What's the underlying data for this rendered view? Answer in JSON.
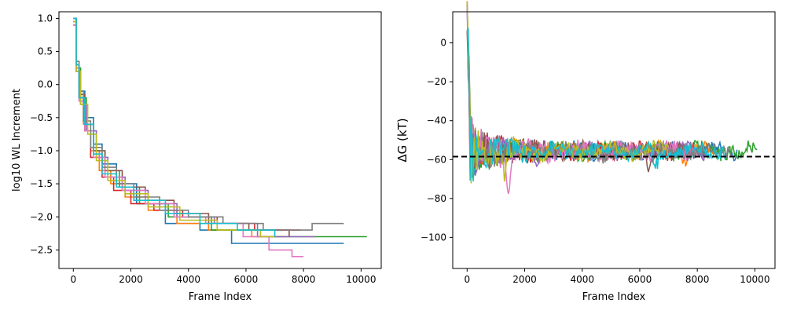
{
  "chart_data": [
    {
      "type": "line",
      "xlabel": "Frame Index",
      "ylabel": "log10 WL Increment",
      "xlim": [
        -500,
        10700
      ],
      "ylim": [
        -2.78,
        1.1
      ],
      "xticks": [
        0,
        2000,
        4000,
        6000,
        8000,
        10000
      ],
      "yticks": [
        1.0,
        0.5,
        0.0,
        -0.5,
        -1.0,
        -1.5,
        -2.0,
        -2.5
      ],
      "xtick_labels": [
        "0",
        "2000",
        "4000",
        "6000",
        "8000",
        "10000"
      ],
      "ytick_labels": [
        "1.0",
        "0.5",
        "0.0",
        "−0.5",
        "−1.0",
        "−1.5",
        "−2.0",
        "−2.5"
      ],
      "grid": false,
      "series": [
        {
          "color": "#1f77b4",
          "x": [
            0,
            100,
            200,
            400,
            700,
            1000,
            1500,
            2200,
            3200,
            4400,
            5500,
            9400
          ],
          "y": [
            1.0,
            0.3,
            -0.1,
            -0.5,
            -0.9,
            -1.2,
            -1.5,
            -1.8,
            -2.1,
            -2.2,
            -2.4,
            -2.4
          ]
        },
        {
          "color": "#ff7f0e",
          "x": [
            0,
            100,
            200,
            350,
            600,
            900,
            1300,
            1800,
            2600,
            3600,
            4700,
            6200,
            7300
          ],
          "y": [
            0.9,
            0.2,
            -0.2,
            -0.6,
            -1.0,
            -1.3,
            -1.5,
            -1.7,
            -1.9,
            -2.1,
            -2.2,
            -2.3,
            -2.3
          ]
        },
        {
          "color": "#2ca02c",
          "x": [
            0,
            100,
            250,
            450,
            700,
            1100,
            1600,
            2300,
            3300,
            4800,
            6500,
            8800,
            10200
          ],
          "y": [
            0.95,
            0.25,
            -0.2,
            -0.6,
            -1.0,
            -1.3,
            -1.55,
            -1.8,
            -2.0,
            -2.2,
            -2.3,
            -2.3,
            -2.3
          ]
        },
        {
          "color": "#d62728",
          "x": [
            0,
            100,
            200,
            400,
            600,
            1000,
            1400,
            2000,
            2800,
            3800,
            5000,
            6300,
            7900
          ],
          "y": [
            1.0,
            0.3,
            -0.2,
            -0.7,
            -1.1,
            -1.4,
            -1.6,
            -1.8,
            -1.9,
            -2.0,
            -2.1,
            -2.2,
            -2.2
          ]
        },
        {
          "color": "#9467bd",
          "x": [
            0,
            100,
            250,
            450,
            800,
            1200,
            1800,
            2600,
            3600,
            4900,
            6400,
            8400
          ],
          "y": [
            0.9,
            0.2,
            -0.3,
            -0.7,
            -1.1,
            -1.4,
            -1.6,
            -1.8,
            -2.0,
            -2.1,
            -2.3,
            -2.3
          ]
        },
        {
          "color": "#8c564b",
          "x": [
            0,
            100,
            200,
            400,
            700,
            1100,
            1700,
            2500,
            3500,
            4700,
            6100,
            7500
          ],
          "y": [
            0.95,
            0.3,
            -0.15,
            -0.6,
            -1.0,
            -1.3,
            -1.55,
            -1.75,
            -1.95,
            -2.1,
            -2.2,
            -2.3
          ]
        },
        {
          "color": "#e377c2",
          "x": [
            0,
            100,
            200,
            400,
            700,
            1100,
            1700,
            2500,
            3500,
            4600,
            5900,
            6800,
            7600,
            8000
          ],
          "y": [
            0.9,
            0.25,
            -0.25,
            -0.7,
            -1.1,
            -1.4,
            -1.6,
            -1.8,
            -2.0,
            -2.1,
            -2.3,
            -2.5,
            -2.6,
            -2.6
          ]
        },
        {
          "color": "#7f7f7f",
          "x": [
            0,
            100,
            200,
            350,
            600,
            1000,
            1500,
            2100,
            3000,
            4000,
            5200,
            6600,
            8300,
            9400
          ],
          "y": [
            1.0,
            0.35,
            -0.1,
            -0.55,
            -0.95,
            -1.25,
            -1.5,
            -1.7,
            -1.9,
            -2.0,
            -2.1,
            -2.2,
            -2.1,
            -2.1
          ]
        },
        {
          "color": "#bcbd22",
          "x": [
            0,
            100,
            250,
            500,
            800,
            1200,
            1800,
            2600,
            3700,
            5000,
            6500,
            7000
          ],
          "y": [
            0.95,
            0.2,
            -0.3,
            -0.75,
            -1.15,
            -1.45,
            -1.65,
            -1.85,
            -2.05,
            -2.2,
            -2.3,
            -2.3
          ]
        },
        {
          "color": "#17becf",
          "x": [
            0,
            100,
            200,
            400,
            700,
            1000,
            1500,
            2100,
            3200,
            4400,
            5700,
            7000
          ],
          "y": [
            1.0,
            0.3,
            -0.2,
            -0.6,
            -1.05,
            -1.35,
            -1.55,
            -1.75,
            -1.95,
            -2.1,
            -2.2,
            -2.3
          ]
        }
      ]
    },
    {
      "type": "line",
      "xlabel": "Frame Index",
      "ylabel": "ΔG (kT)",
      "xlim": [
        -500,
        10700
      ],
      "ylim": [
        -116,
        16
      ],
      "xticks": [
        0,
        2000,
        4000,
        6000,
        8000,
        10000
      ],
      "yticks": [
        0,
        -20,
        -40,
        -60,
        -80,
        -100
      ],
      "xtick_labels": [
        "0",
        "2000",
        "4000",
        "6000",
        "8000",
        "10000"
      ],
      "ytick_labels": [
        "0",
        "−20",
        "−40",
        "−60",
        "−80",
        "−100"
      ],
      "grid": false,
      "reference_line": {
        "y": -58.5,
        "style": "dashed",
        "color": "#000000"
      },
      "series": [
        {
          "color": "#1f77b4",
          "end": 9400,
          "noise": 7,
          "dip_at": 0,
          "dip_depth": 0
        },
        {
          "color": "#ff7f0e",
          "end": 8600,
          "noise": 7,
          "dip_at": 7600,
          "dip_depth": 6
        },
        {
          "color": "#2ca02c",
          "end": 10100,
          "noise": 7,
          "dip_at": 9500,
          "dip_depth": 4
        },
        {
          "color": "#d62728",
          "end": 7900,
          "noise": 7,
          "dip_at": 0,
          "dip_depth": 0
        },
        {
          "color": "#9467bd",
          "end": 8400,
          "noise": 7,
          "dip_at": 2400,
          "dip_depth": 8
        },
        {
          "color": "#8c564b",
          "end": 7600,
          "noise": 7,
          "dip_at": 6300,
          "dip_depth": 6
        },
        {
          "color": "#e377c2",
          "end": 8000,
          "noise": 8,
          "dip_at": 1450,
          "dip_depth": 16
        },
        {
          "color": "#7f7f7f",
          "end": 9200,
          "noise": 7,
          "dip_at": 4800,
          "dip_depth": 6
        },
        {
          "color": "#bcbd22",
          "end": 7000,
          "noise": 8,
          "dip_at": 1300,
          "dip_depth": 10
        },
        {
          "color": "#17becf",
          "end": 9000,
          "noise": 7,
          "dip_at": 6550,
          "dip_depth": 8
        }
      ]
    }
  ]
}
